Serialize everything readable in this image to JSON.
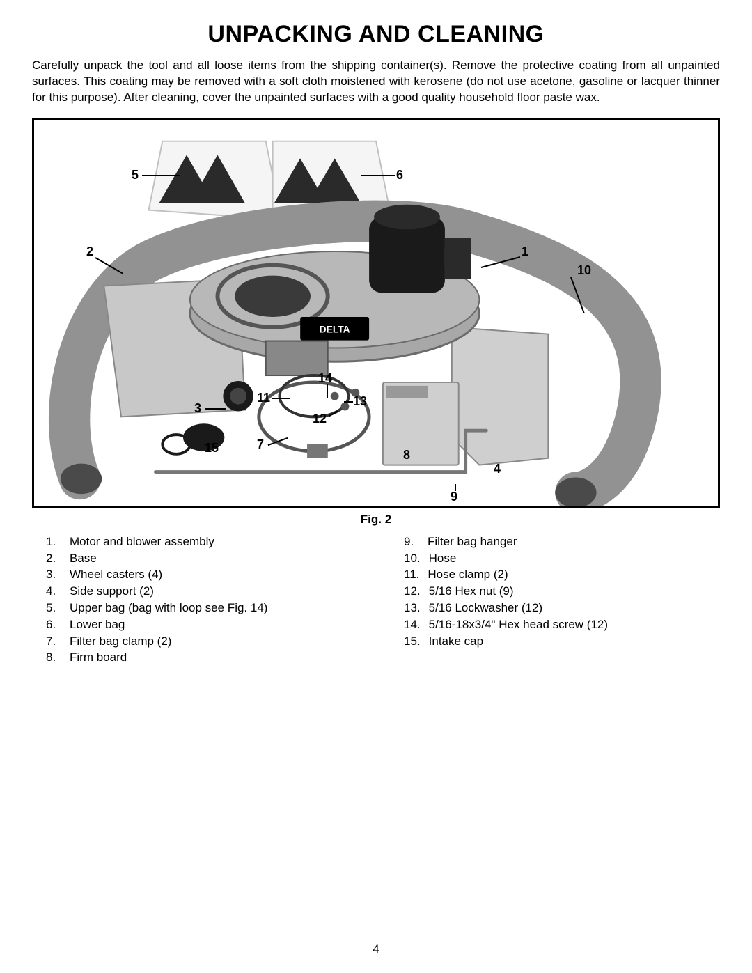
{
  "title": "UNPACKING AND CLEANING",
  "intro": "Carefully unpack the tool and all loose items from the shipping container(s). Remove the protective coating from all unpainted surfaces. This coating may be removed with a soft cloth moistened with kerosene (do not use acetone, gasoline or lacquer thinner for this purpose). After cleaning, cover the unpainted surfaces with a good quality household floor paste wax.",
  "figure_caption": "Fig. 2",
  "page_number": "4",
  "parts_left": [
    {
      "n": "1.",
      "t": "Motor and blower assembly"
    },
    {
      "n": "2.",
      "t": "Base"
    },
    {
      "n": "3.",
      "t": "Wheel casters (4)"
    },
    {
      "n": "4.",
      "t": "Side support (2)"
    },
    {
      "n": "5.",
      "t": "Upper bag (bag with loop see Fig. 14)"
    },
    {
      "n": "6.",
      "t": "Lower bag"
    },
    {
      "n": "7.",
      "t": "Filter bag clamp (2)"
    },
    {
      "n": "8.",
      "t": "Firm board"
    }
  ],
  "parts_right": [
    {
      "n": "9.",
      "t": "Filter bag hanger"
    },
    {
      "n": "10.",
      "t": "Hose"
    },
    {
      "n": "11.",
      "t": "Hose clamp (2)"
    },
    {
      "n": "12.",
      "t": "5/16 Hex nut (9)"
    },
    {
      "n": "13.",
      "t": "5/16 Lockwasher (12)"
    },
    {
      "n": "14.",
      "t": "5/16-18x3/4\" Hex head screw (12)"
    },
    {
      "n": "15.",
      "t": "Intake cap"
    }
  ],
  "callouts": {
    "c1": "1",
    "c2": "2",
    "c3": "3",
    "c4": "4",
    "c5": "5",
    "c6": "6",
    "c7": "7",
    "c8": "8",
    "c9": "9",
    "c10": "10",
    "c11": "11",
    "c12": "12",
    "c13": "13",
    "c14": "14",
    "c15": "15"
  },
  "brand_label": "DELTA",
  "figure_style": {
    "border_width": 3,
    "border_color": "#000000",
    "background": "#ffffff",
    "hose_color": "#b5b5b5",
    "hose_stroke": "#707070",
    "body_color": "#a8a8a8",
    "body_shadow": "#6b6b6b",
    "motor_color": "#1a1a1a",
    "bag_fill": "#f5f5f5",
    "bag_stroke": "#c0c0c0",
    "base_fill": "#c8c8c8",
    "metal_fill": "#cfcfcf",
    "label_bg": "#000000",
    "label_fg": "#ffffff",
    "callout_font_size": 18,
    "callout_font_weight": "bold"
  }
}
